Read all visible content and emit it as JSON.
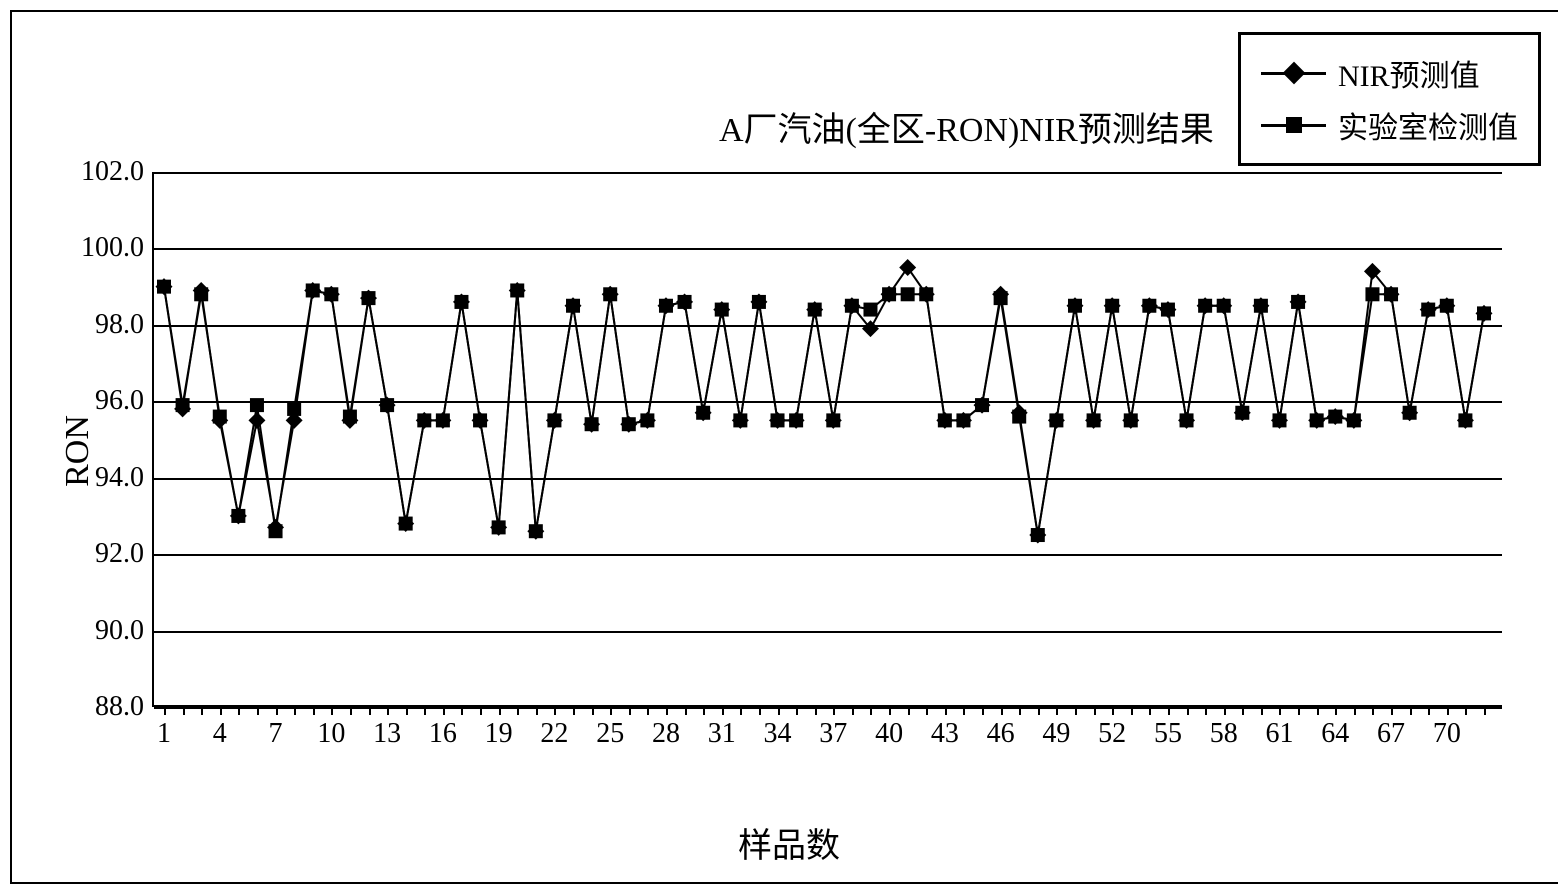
{
  "chart": {
    "type": "line",
    "title": "A厂汽油(全区-RON)NIR预测结果",
    "title_fontsize": 34,
    "xlabel": "样品数",
    "ylabel": "RON",
    "label_fontsize": 34,
    "tick_fontsize": 28,
    "ylim": [
      88.0,
      102.0
    ],
    "ytick_step": 2.0,
    "yticks": [
      "88.0",
      "90.0",
      "92.0",
      "94.0",
      "96.0",
      "98.0",
      "100.0",
      "102.0"
    ],
    "xtick_start": 1,
    "xtick_step": 3,
    "xtick_max": 70,
    "x_count": 72,
    "background_color": "#ffffff",
    "grid_color": "#000000",
    "border_color": "#000000",
    "line_width": 2,
    "legend": {
      "position": "top-right",
      "border_color": "#000000",
      "items": [
        {
          "label": "NIR预测值",
          "marker": "diamond",
          "color": "#000000"
        },
        {
          "label": "实验室检测值",
          "marker": "square",
          "color": "#000000"
        }
      ]
    },
    "series": [
      {
        "name": "NIR预测值",
        "marker": "diamond",
        "color": "#000000",
        "values": [
          99.0,
          95.8,
          98.9,
          95.5,
          93.0,
          95.5,
          92.7,
          95.5,
          98.9,
          98.8,
          95.5,
          98.7,
          95.9,
          92.8,
          95.5,
          95.5,
          98.6,
          95.5,
          92.7,
          98.9,
          92.6,
          95.5,
          98.5,
          95.4,
          98.8,
          95.4,
          95.5,
          98.5,
          98.6,
          95.7,
          98.4,
          95.5,
          98.6,
          95.5,
          95.5,
          98.4,
          95.5,
          98.5,
          97.9,
          98.8,
          99.5,
          98.8,
          95.5,
          95.5,
          95.9,
          98.8,
          95.7,
          92.5,
          95.5,
          98.5,
          95.5,
          98.5,
          95.5,
          98.5,
          98.4,
          95.5,
          98.5,
          98.5,
          95.7,
          98.5,
          95.5,
          98.6,
          95.5,
          95.6,
          95.5,
          99.4,
          98.8,
          95.7,
          98.4,
          98.5,
          95.5,
          98.3
        ]
      },
      {
        "name": "实验室检测值",
        "marker": "square",
        "color": "#000000",
        "values": [
          99.0,
          95.9,
          98.8,
          95.6,
          93.0,
          95.9,
          92.6,
          95.8,
          98.9,
          98.8,
          95.6,
          98.7,
          95.9,
          92.8,
          95.5,
          95.5,
          98.6,
          95.5,
          92.7,
          98.9,
          92.6,
          95.5,
          98.5,
          95.4,
          98.8,
          95.4,
          95.5,
          98.5,
          98.6,
          95.7,
          98.4,
          95.5,
          98.6,
          95.5,
          95.5,
          98.4,
          95.5,
          98.5,
          98.4,
          98.8,
          98.8,
          98.8,
          95.5,
          95.5,
          95.9,
          98.7,
          95.6,
          92.5,
          95.5,
          98.5,
          95.5,
          98.5,
          95.5,
          98.5,
          98.4,
          95.5,
          98.5,
          98.5,
          95.7,
          98.5,
          95.5,
          98.6,
          95.5,
          95.6,
          95.5,
          98.8,
          98.8,
          95.7,
          98.4,
          98.5,
          95.5,
          98.3
        ]
      }
    ]
  }
}
